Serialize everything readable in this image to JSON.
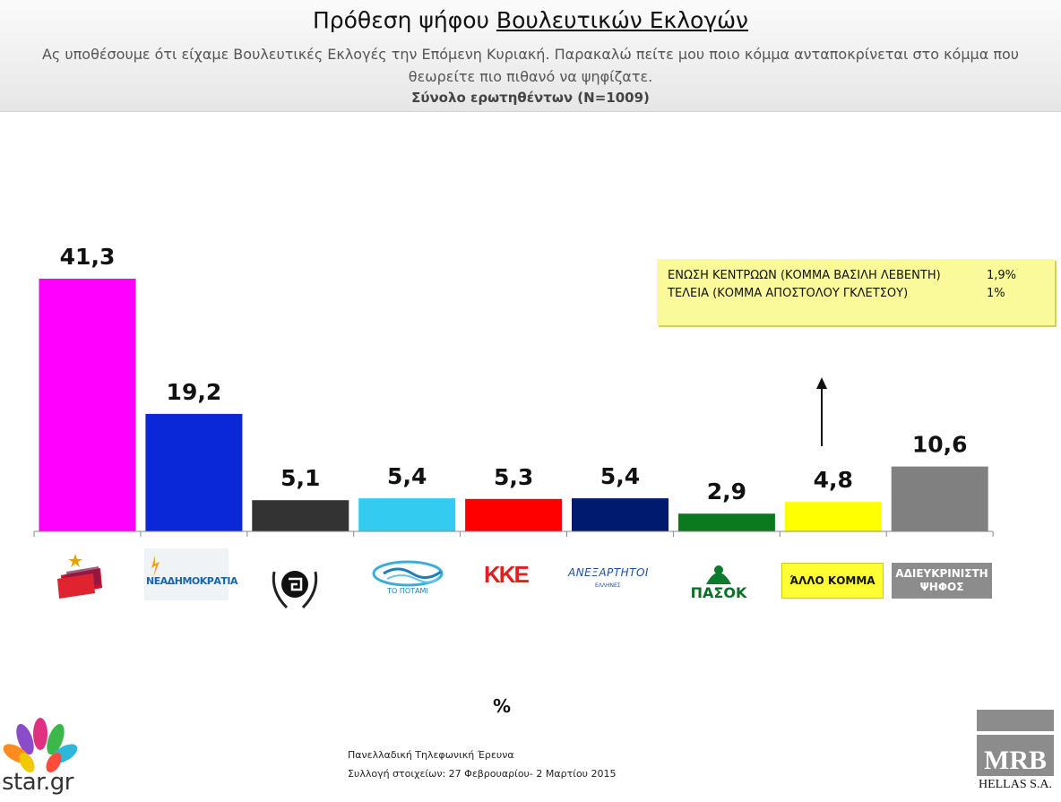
{
  "header": {
    "title_part1": "Πρόθεση ψήφου ",
    "title_part2": "Βουλευτικών Εκλογών",
    "subtitle": "Ας υποθέσουμε ότι είχαμε Βουλευτικές Εκλογές την Επόμενη Κυριακή. Παρακαλώ πείτε μου ποιο κόμμα ανταποκρίνεται στο κόμμα που θεωρείτε πιο πιθανό να ψηφίζατε.",
    "sample": "Σύνολο ερωτηθέντων (N=1009)"
  },
  "chart_data": {
    "type": "bar",
    "categories": [
      "ΣΥΡΙΖΑ",
      "ΝΕΑ ΔΗΜΟΚΡΑΤΙΑ",
      "ΧΡΥΣΗ ΑΥΓΗ",
      "ΤΟ ΠΟΤΑΜΙ",
      "ΚΚΕ",
      "ΑΝΕΞΑΡΤΗΤΟΙ ΕΛΛΗΝΕΣ",
      "ΠΑΣΟΚ",
      "ΑΛΛΟ ΚΟΜΜΑ",
      "ΑΔΙΕΥΚΡΙΝΙΣΤΗ ΨΗΦΟΣ"
    ],
    "values": [
      41.3,
      19.2,
      5.1,
      5.4,
      5.3,
      5.4,
      2.9,
      4.8,
      10.6
    ],
    "value_labels": [
      "41,3",
      "19,2",
      "5,1",
      "5,4",
      "5,3",
      "5,4",
      "2,9",
      "4,8",
      "10,6"
    ],
    "colors": [
      "#ff00ff",
      "#0a28d8",
      "#333333",
      "#33ccf0",
      "#ff0000",
      "#001a70",
      "#0b7a1e",
      "#ffff00",
      "#808080"
    ],
    "ylim": [
      0,
      41.3
    ],
    "xlabel": "%",
    "grid": false,
    "legend": "none"
  },
  "logos": {
    "nd_text": "ΝΕΑΔΗΜΟΚΡΑΤΙΑ",
    "potami_text": "ΤΟ ΠΟΤΑΜΙ",
    "kke_text": "ΚΚΕ",
    "anel_text": "ΑΝΕΞΑΡΤΗΤΟΙ",
    "anel_sub": "ΕΛΛΗΝΕΣ",
    "pasok_text": "ΠΑΣΟΚ",
    "other_label": "ΆΛΛΟ ΚΟΜΜΑ",
    "undecided_line1": "ΑΔΙΕΥΚΡΙΝΙΣΤΗ",
    "undecided_line2": "ΨΗΦΟΣ"
  },
  "note": {
    "rows": [
      {
        "label": "ΕΝΩΣΗ ΚΕΝΤΡΩΩΝ (ΚΟΜΜΑ ΒΑΣΙΛΗ ΛΕΒΕΝΤΗ)",
        "value": "1,9%"
      },
      {
        "label": "ΤΕΛΕΙΑ (ΚΟΜΜΑ ΑΠΟΣΤΟΛΟΥ ΓΚΛΕΤΣΟΥ)",
        "value": "1%"
      }
    ]
  },
  "footer": {
    "line1": "Πανελλαδική  Τηλεφωνική Έρευνα",
    "line2": "Συλλογή στοιχείων: 27 Φεβρουαρίου- 2 Μαρτίου  2015"
  },
  "branding": {
    "star": "star.gr",
    "mrb": "MRB",
    "mrb_sub": "HELLAS S.A."
  }
}
